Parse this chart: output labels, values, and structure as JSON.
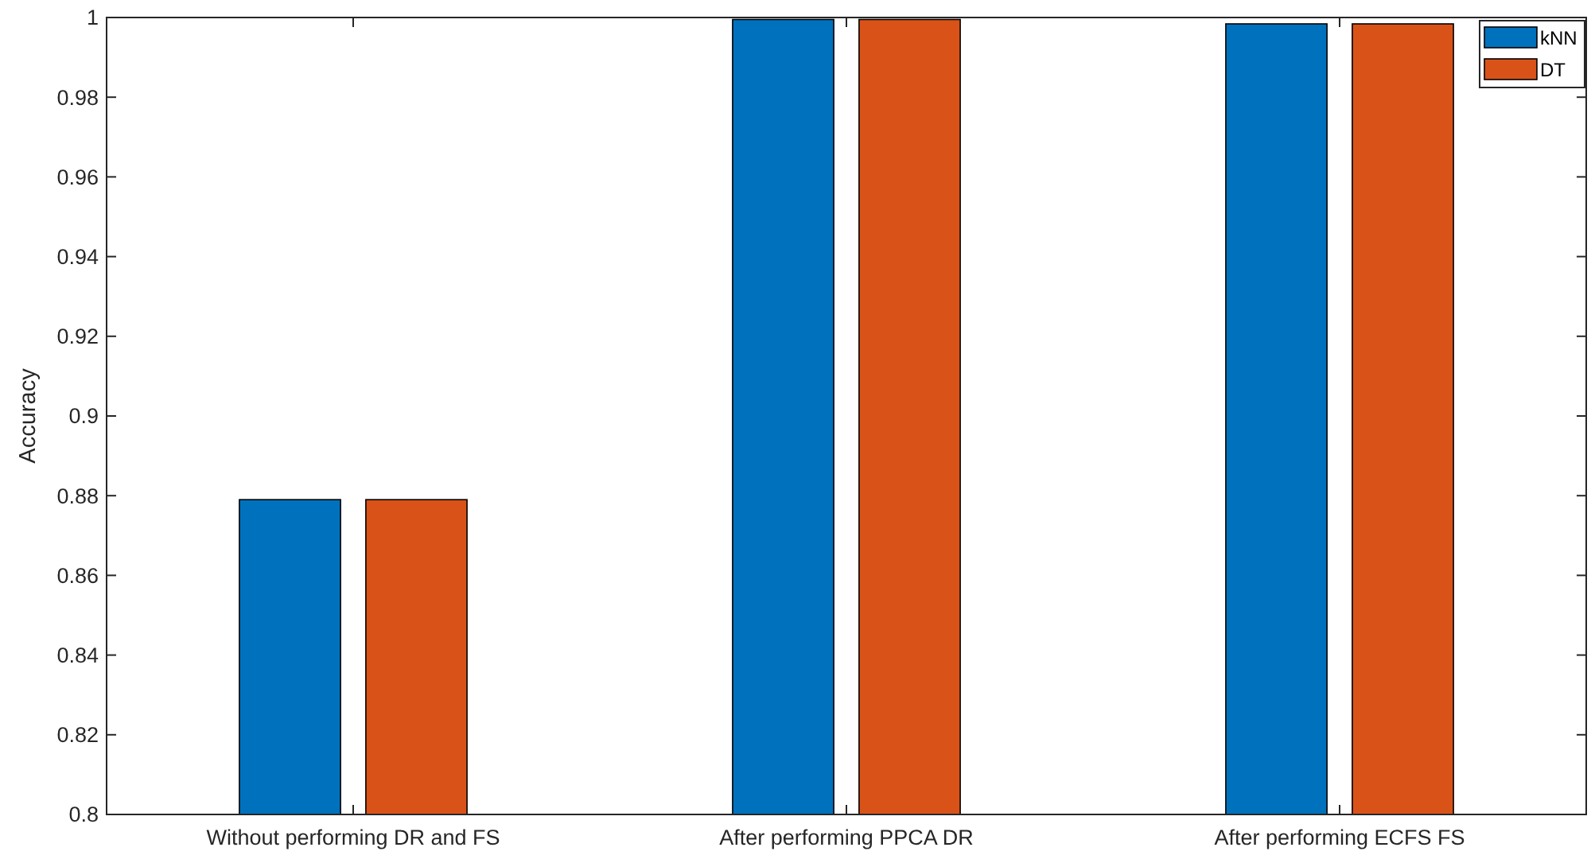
{
  "chart_data": {
    "type": "bar",
    "ylabel": "Accuracy",
    "categories": [
      "Without performing DR and FS",
      "After performing PPCA DR",
      "After performing ECFS FS"
    ],
    "series": [
      {
        "name": "kNN",
        "color": "#0072bd",
        "values": [
          0.879,
          0.9995,
          0.9984
        ]
      },
      {
        "name": "DT",
        "color": "#d95319",
        "values": [
          0.879,
          0.9995,
          0.9984
        ]
      }
    ],
    "ylim": [
      0.8,
      1
    ],
    "yticks": [
      0.8,
      0.82,
      0.84,
      0.86,
      0.88,
      0.9,
      0.92,
      0.94,
      0.96,
      0.98,
      1
    ],
    "grid": false,
    "legend": "top right"
  }
}
